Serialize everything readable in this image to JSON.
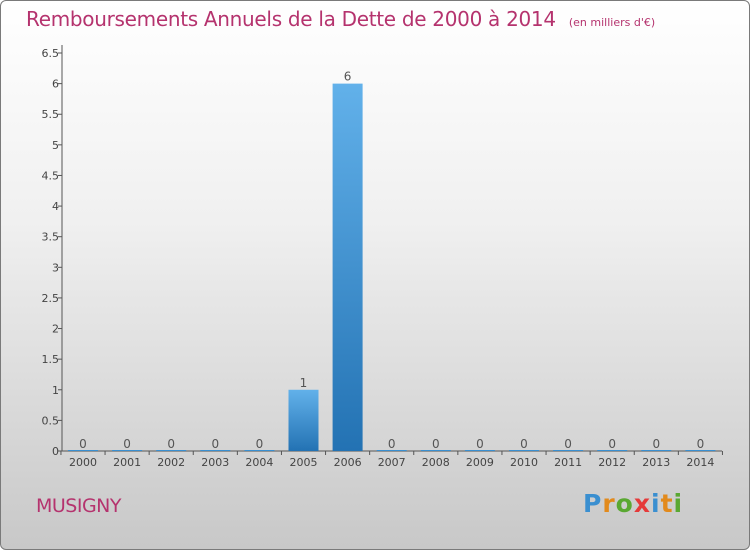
{
  "chart_data": {
    "type": "bar",
    "title": "Remboursements Annuels de la Dette de 2000 à 2014",
    "subtitle": "(en milliers d'€)",
    "xlabel": "",
    "ylabel": "",
    "categories": [
      "2000",
      "2001",
      "2002",
      "2003",
      "2004",
      "2005",
      "2006",
      "2007",
      "2008",
      "2009",
      "2010",
      "2011",
      "2012",
      "2013",
      "2014"
    ],
    "values": [
      0,
      0,
      0,
      0,
      0,
      1,
      6,
      0,
      0,
      0,
      0,
      0,
      0,
      0,
      0
    ],
    "ylim": [
      0,
      6.5
    ],
    "yticks": [
      0,
      0.5,
      1,
      1.5,
      2,
      2.5,
      3,
      3.5,
      4,
      4.5,
      5,
      5.5,
      6,
      6.5
    ],
    "ytick_labels": [
      "0",
      "0.5",
      "1",
      "1.5",
      "2",
      "2.5",
      "3",
      "3.5",
      "4",
      "4.5",
      "5",
      "5.5",
      "6",
      "6.5"
    ],
    "data_labels": [
      "0",
      "0",
      "0",
      "0",
      "0",
      "1",
      "6",
      "0",
      "0",
      "0",
      "0",
      "0",
      "0",
      "0",
      "0"
    ],
    "grid": false,
    "bar_color": "#3a8fd0"
  },
  "footer": {
    "city": "MUSIGNY",
    "logo_letters": [
      "P",
      "r",
      "o",
      "x",
      "i",
      "t",
      "i"
    ],
    "logo_colors": [
      "#3a8fd0",
      "#e28a1c",
      "#5aa832",
      "#e53a3a",
      "#3a8fd0",
      "#e28a1c",
      "#5aa832"
    ]
  }
}
